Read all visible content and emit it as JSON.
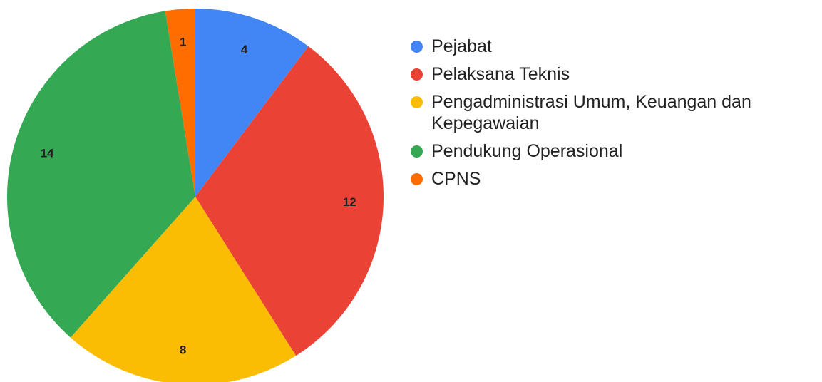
{
  "chart_data": {
    "type": "pie",
    "categories": [
      "Pejabat",
      "Pelaksana Teknis",
      "Pengadministrasi Umum, Keuangan dan Kepegawaian",
      "Pendukung Operasional",
      "CPNS"
    ],
    "values": [
      4,
      12,
      8,
      14,
      1
    ],
    "colors": [
      "#4285f4",
      "#ea4335",
      "#fbbc04",
      "#34a853",
      "#ff6d01"
    ],
    "legend": "right"
  }
}
